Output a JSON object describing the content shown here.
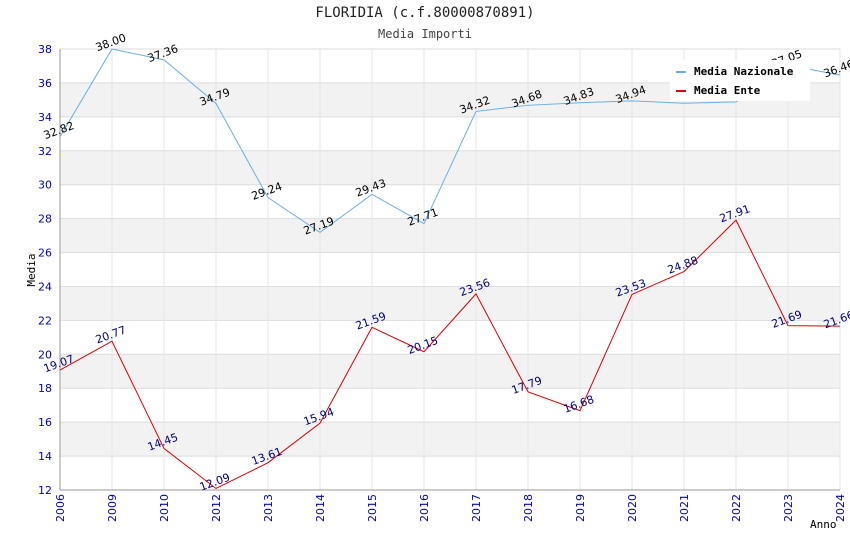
{
  "header": {
    "title": "FLORIDIA (c.f.80000870891)",
    "subtitle": "Media Importi"
  },
  "chart_data": {
    "type": "line",
    "title": "FLORIDIA (c.f.80000870891)",
    "subtitle": "Media Importi",
    "xlabel": "Anno",
    "ylabel": "Media",
    "ylim": [
      12,
      38
    ],
    "yticks": [
      12,
      14,
      16,
      18,
      20,
      22,
      24,
      26,
      28,
      30,
      32,
      34,
      36,
      38
    ],
    "categories": [
      "2006",
      "2009",
      "2010",
      "2012",
      "2013",
      "2014",
      "2015",
      "2016",
      "2017",
      "2018",
      "2019",
      "2020",
      "2021",
      "2022",
      "2023",
      "2024"
    ],
    "legend_position": "top-right",
    "series": [
      {
        "name": "Media Nazionale",
        "color": "#6aaee8",
        "label_color": "#000000",
        "values": [
          32.82,
          38.0,
          37.36,
          34.79,
          29.24,
          27.19,
          29.43,
          27.71,
          34.32,
          34.68,
          34.83,
          34.94,
          34.8,
          34.88,
          37.05,
          36.46
        ],
        "labels": [
          "32.82",
          "38.00",
          "37.36",
          "34.79",
          "29.24",
          "27.19",
          "29.43",
          "27.71",
          "34.32",
          "34.68",
          "34.83",
          "34.94",
          "",
          "",
          "37.05",
          "36.46"
        ]
      },
      {
        "name": "Media Ente",
        "color": "#e00000",
        "label_color": "#000080",
        "values": [
          19.07,
          20.77,
          14.45,
          12.09,
          13.61,
          15.94,
          21.59,
          20.15,
          23.56,
          17.79,
          16.68,
          23.53,
          24.88,
          27.91,
          21.69,
          21.66
        ],
        "labels": [
          "19.07",
          "20.77",
          "14.45",
          "12.09",
          "13.61",
          "15.94",
          "21.59",
          "20.15",
          "23.56",
          "17.79",
          "16.68",
          "23.53",
          "24.88",
          "27.91",
          "21.69",
          "21.66"
        ]
      }
    ]
  }
}
